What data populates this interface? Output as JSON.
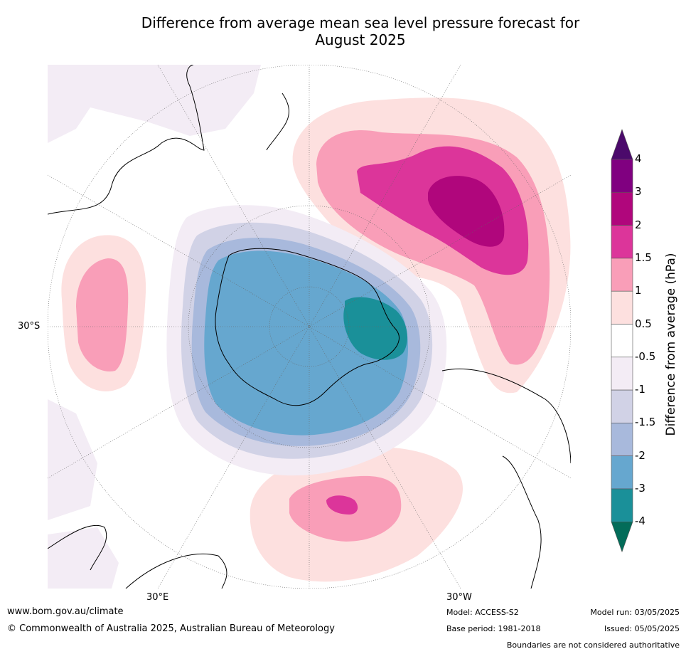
{
  "title_line1": "Difference from average mean sea level pressure forecast for",
  "title_line2": "August 2025",
  "map_labels": {
    "lat_30s": "30°S",
    "lon_30e": "30°E",
    "lon_30w": "30°W"
  },
  "colorbar": {
    "label": "Difference from average (hPa)",
    "ticks": [
      "4",
      "3",
      "2",
      "1.5",
      "1",
      "0.5",
      "-0.5",
      "-1",
      "-1.5",
      "-2",
      "-3",
      "-4"
    ],
    "colors": {
      "above_4": "#4b0a6b",
      "3_to_4": "#800080",
      "2_to_3": "#b0067c",
      "1.5_to_2": "#dc359a",
      "1_to_1.5": "#f99eb8",
      "0.5_to_1": "#fde0df",
      "-0.5_to_0.5": "#ffffff",
      "-1_to_-0.5": "#f3ecf5",
      "-1.5_to_-1": "#d1d2e6",
      "-2_to_-1.5": "#a8b9dc",
      "-3_to_-2": "#66a7cf",
      "-4_to_-3": "#1a9099",
      "below_-4": "#036c59"
    }
  },
  "footer": {
    "website": "www.bom.gov.au/climate",
    "copyright": "© Commonwealth of Australia 2025, Australian Bureau of Meteorology",
    "model": "Model: ACCESS-S2",
    "base_period": "Base period: 1981-2018",
    "model_run": "Model run: 03/05/2025",
    "issued": "Issued: 05/05/2025",
    "disclaimer": "Boundaries are not considered authoritative"
  }
}
